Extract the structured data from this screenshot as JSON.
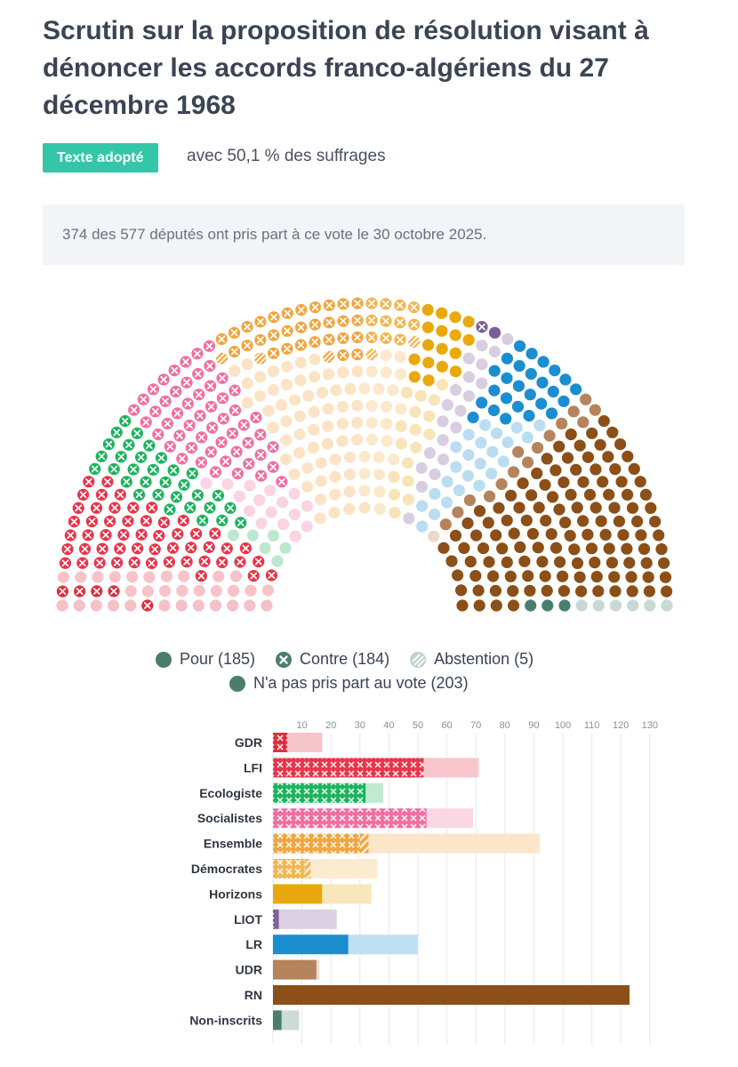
{
  "header": {
    "title": "Scrutin sur la proposition de résolution visant à dénoncer les accords franco-algériens du 27 décembre 1968",
    "badge": "Texte adopté",
    "subtitle": "avec 50,1 % des suffrages",
    "info": "374 des 577 députés ont pris part à ce vote le 30 octobre 2025."
  },
  "legend": {
    "pour": "Pour (185)",
    "contre": "Contre (184)",
    "abstention": "Abstention (5)",
    "non_votant": "N'a pas pris part au vote (203)"
  },
  "colors": {
    "GDR": "#dc2f3f",
    "LFI": "#e5364b",
    "Ecologiste": "#1db35e",
    "Socialistes": "#ef6fa3",
    "Ensemble": "#f0a640",
    "Democrates": "#f2b653",
    "Horizons": "#e9a90e",
    "LIOT": "#7c5c98",
    "LR": "#1b8ed0",
    "UDR": "#b5835c",
    "RN": "#8b4f17",
    "NI": "#4a7d6e",
    "legend_dot": "#4a7d6e"
  },
  "chart_data": [
    {
      "type": "hemicycle",
      "total_seats": 577,
      "groups": [
        {
          "name": "GDR",
          "seats": 17,
          "pour": 0,
          "contre": 5,
          "abstention": 0,
          "absent": 12
        },
        {
          "name": "LFI",
          "seats": 71,
          "pour": 0,
          "contre": 52,
          "abstention": 0,
          "absent": 19
        },
        {
          "name": "Ecologiste",
          "seats": 38,
          "pour": 0,
          "contre": 32,
          "abstention": 0,
          "absent": 6
        },
        {
          "name": "Socialistes",
          "seats": 69,
          "pour": 0,
          "contre": 53,
          "abstention": 0,
          "absent": 16
        },
        {
          "name": "Ensemble",
          "seats": 92,
          "pour": 0,
          "contre": 30,
          "abstention": 3,
          "absent": 59
        },
        {
          "name": "Democrates",
          "seats": 36,
          "pour": 0,
          "contre": 11,
          "abstention": 2,
          "absent": 23
        },
        {
          "name": "Horizons",
          "seats": 34,
          "pour": 17,
          "contre": 0,
          "abstention": 0,
          "absent": 17
        },
        {
          "name": "LIOT",
          "seats": 22,
          "pour": 1,
          "contre": 1,
          "abstention": 0,
          "absent": 20
        },
        {
          "name": "LR",
          "seats": 50,
          "pour": 26,
          "contre": 0,
          "abstention": 0,
          "absent": 24
        },
        {
          "name": "UDR",
          "seats": 16,
          "pour": 15,
          "contre": 0,
          "abstention": 0,
          "absent": 1
        },
        {
          "name": "RN",
          "seats": 123,
          "pour": 123,
          "contre": 0,
          "abstention": 0,
          "absent": 0
        },
        {
          "name": "NI",
          "seats": 9,
          "pour": 3,
          "contre": 0,
          "abstention": 0,
          "absent": 6
        }
      ]
    },
    {
      "type": "bar",
      "orientation": "horizontal",
      "categories": [
        "GDR",
        "LFI",
        "Ecologiste",
        "Socialistes",
        "Ensemble",
        "Démocrates",
        "Horizons",
        "LIOT",
        "LR",
        "UDR",
        "RN",
        "Non-inscrits"
      ],
      "x_ticks": [
        "10",
        "20",
        "30",
        "40",
        "50",
        "60",
        "70",
        "80",
        "90",
        "100",
        "110",
        "120",
        "130"
      ],
      "xlim": [
        0,
        130
      ],
      "grid": true,
      "stacked": true,
      "series": [
        {
          "name": "Pour",
          "values": [
            0,
            0,
            0,
            0,
            0,
            0,
            17,
            1,
            26,
            15,
            123,
            3
          ]
        },
        {
          "name": "Contre",
          "values": [
            5,
            52,
            32,
            53,
            30,
            11,
            0,
            1,
            0,
            0,
            0,
            0
          ]
        },
        {
          "name": "Abstention",
          "values": [
            0,
            0,
            0,
            0,
            3,
            2,
            0,
            0,
            0,
            0,
            0,
            0
          ]
        },
        {
          "name": "N'a pas pris part au vote",
          "values": [
            12,
            19,
            6,
            16,
            59,
            23,
            17,
            20,
            24,
            1,
            0,
            6
          ]
        }
      ],
      "totals": [
        17,
        71,
        38,
        69,
        92,
        36,
        34,
        22,
        50,
        16,
        123,
        9
      ]
    }
  ]
}
